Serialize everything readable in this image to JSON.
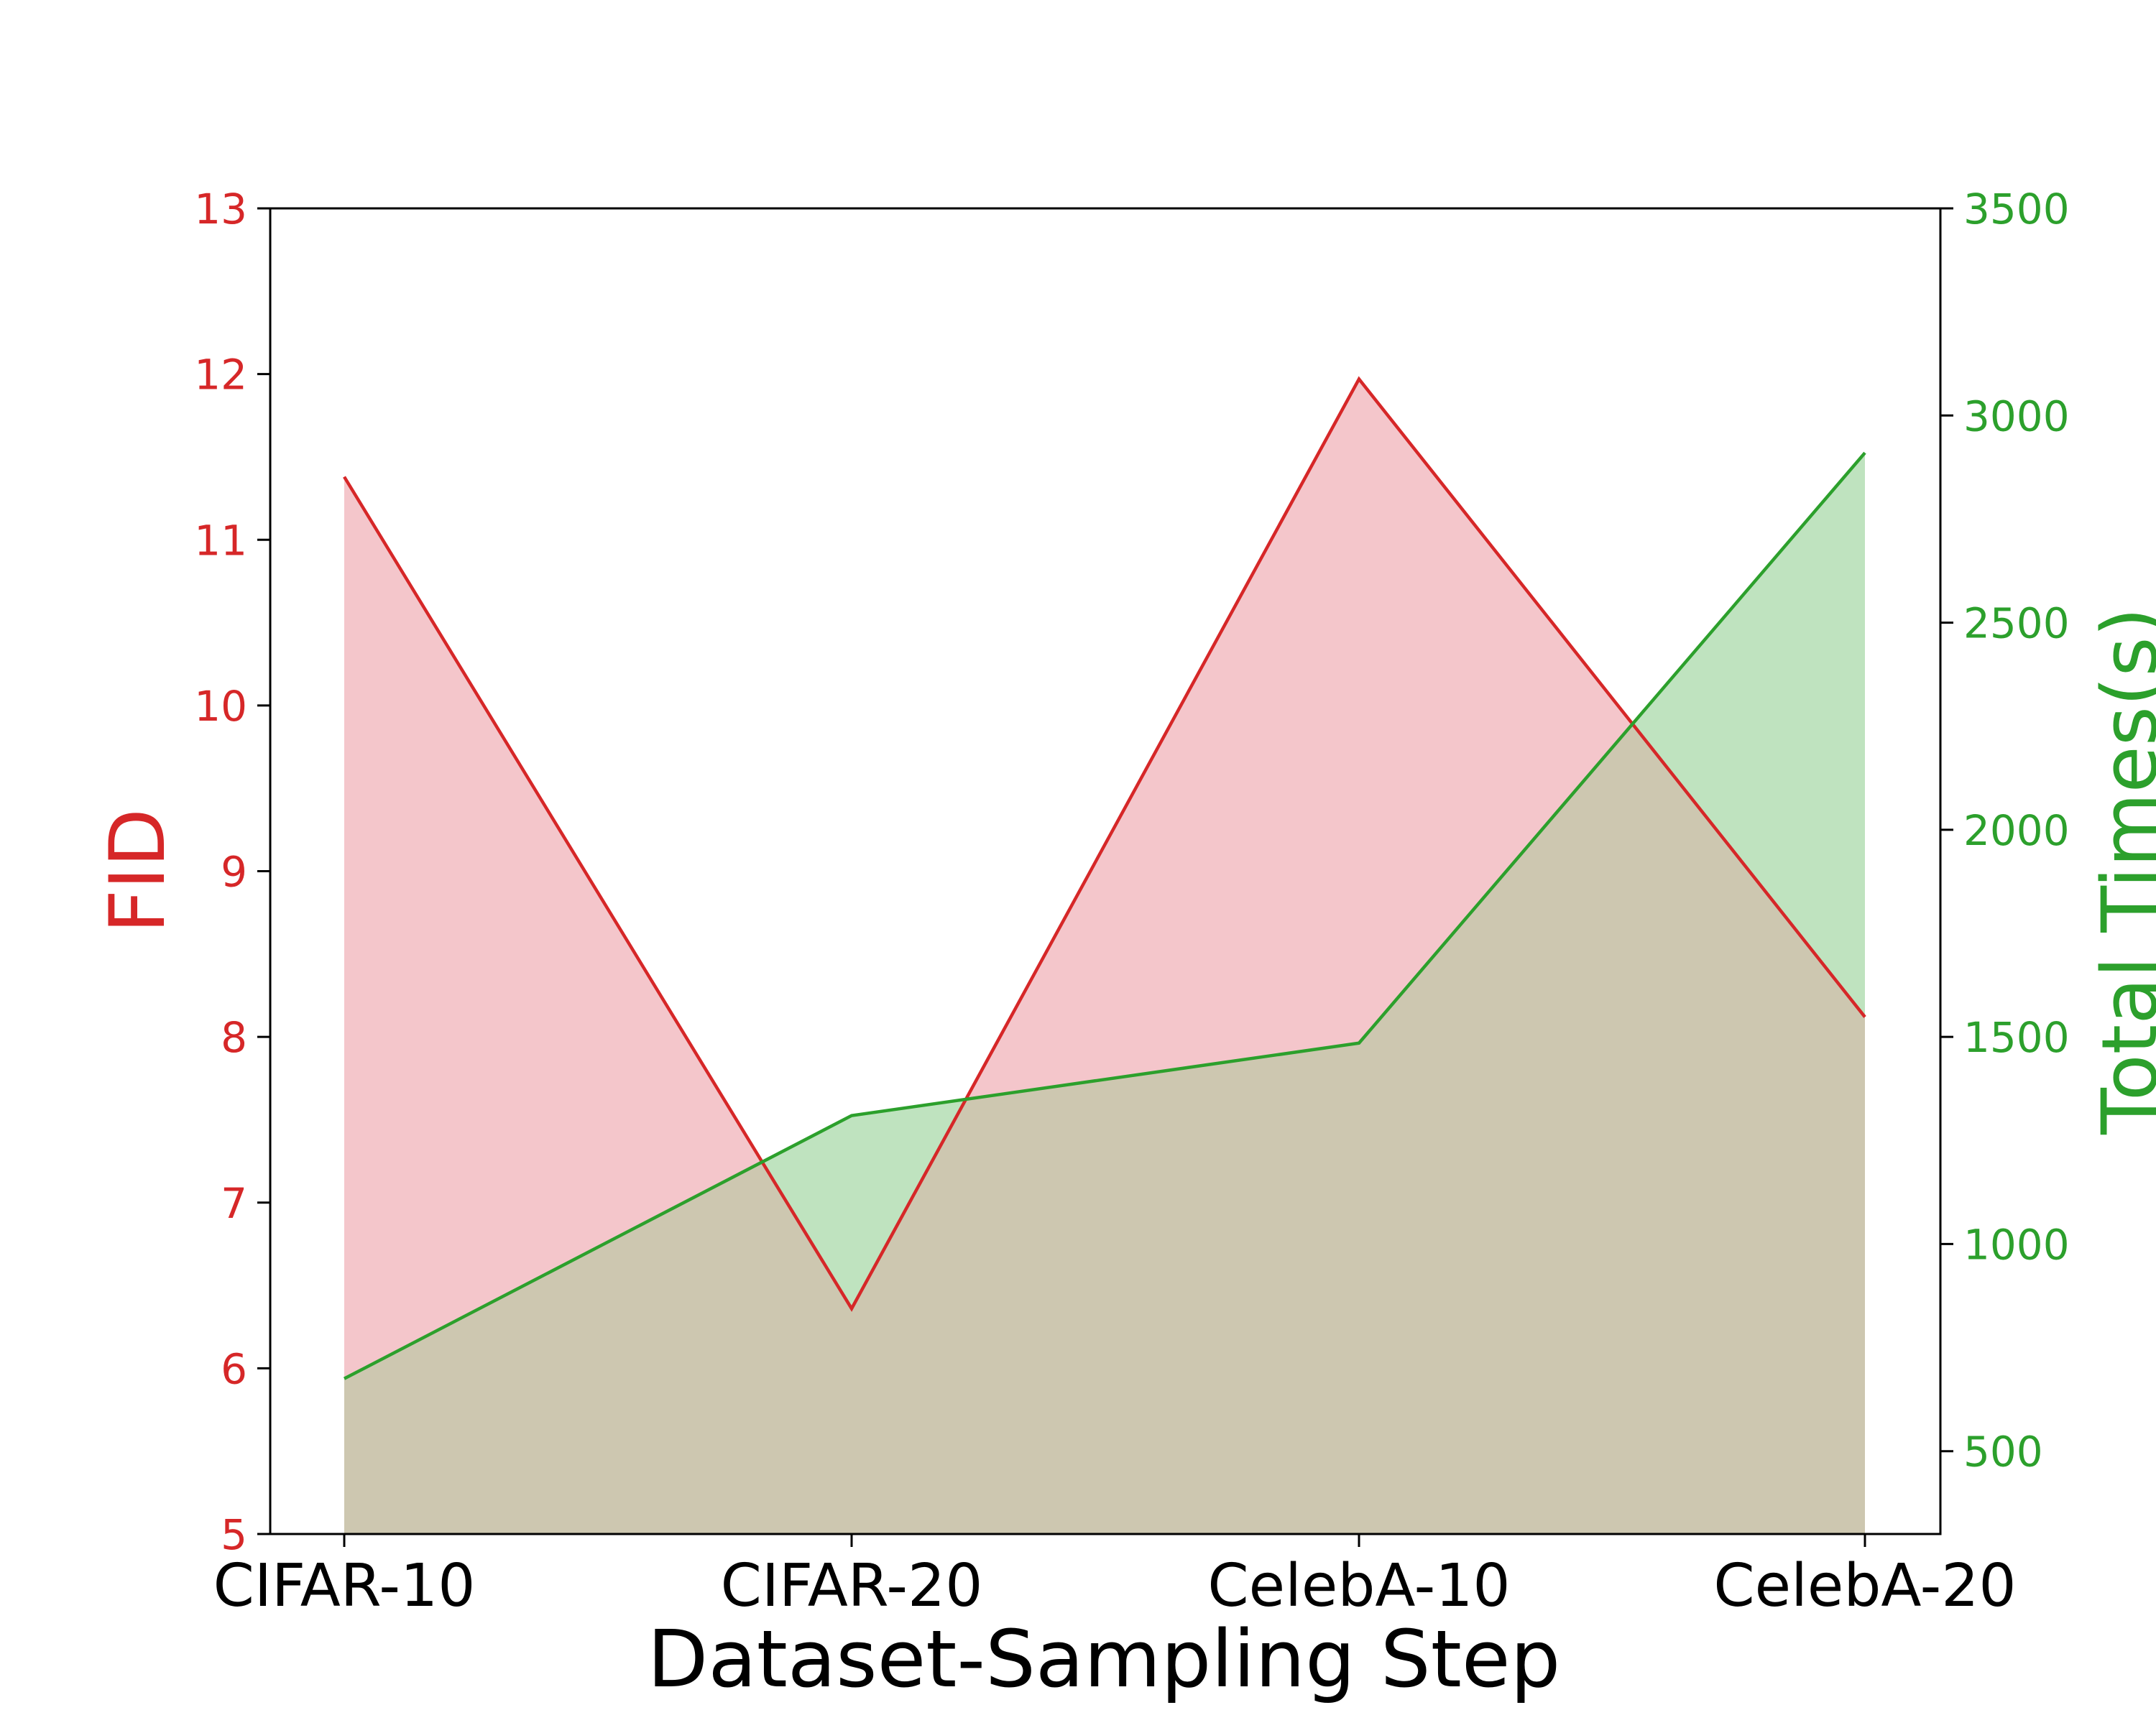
{
  "colors": {
    "fid_line": "#d62728",
    "fid_fill": "#f4c6cb",
    "time_line": "#2ca02c",
    "time_fill": "#bfe3bf",
    "overlap_fill": "#cdc7b0",
    "axes": "#000000"
  },
  "chart_data": {
    "type": "area",
    "title": "",
    "xlabel": "Dataset-Sampling Step",
    "categories": [
      "CIFAR-10",
      "CIFAR-20",
      "CelebA-10",
      "CelebA-20"
    ],
    "y_left": {
      "label": "FID",
      "ylim": [
        5,
        13
      ],
      "ticks": [
        5,
        6,
        7,
        8,
        9,
        10,
        11,
        12,
        13
      ]
    },
    "y_right": {
      "label": "Total Times(s)",
      "ylim": [
        300,
        3500
      ],
      "ticks": [
        500,
        1000,
        1500,
        2000,
        2500,
        3000,
        3500
      ]
    },
    "series": [
      {
        "name": "",
        "axis": "left",
        "values": [
          11.38,
          6.36,
          11.97,
          8.12
        ]
      },
      {
        "name": "",
        "axis": "right",
        "values": [
          675,
          1310,
          1485,
          2910
        ]
      }
    ],
    "grid": false,
    "legend": "none"
  }
}
